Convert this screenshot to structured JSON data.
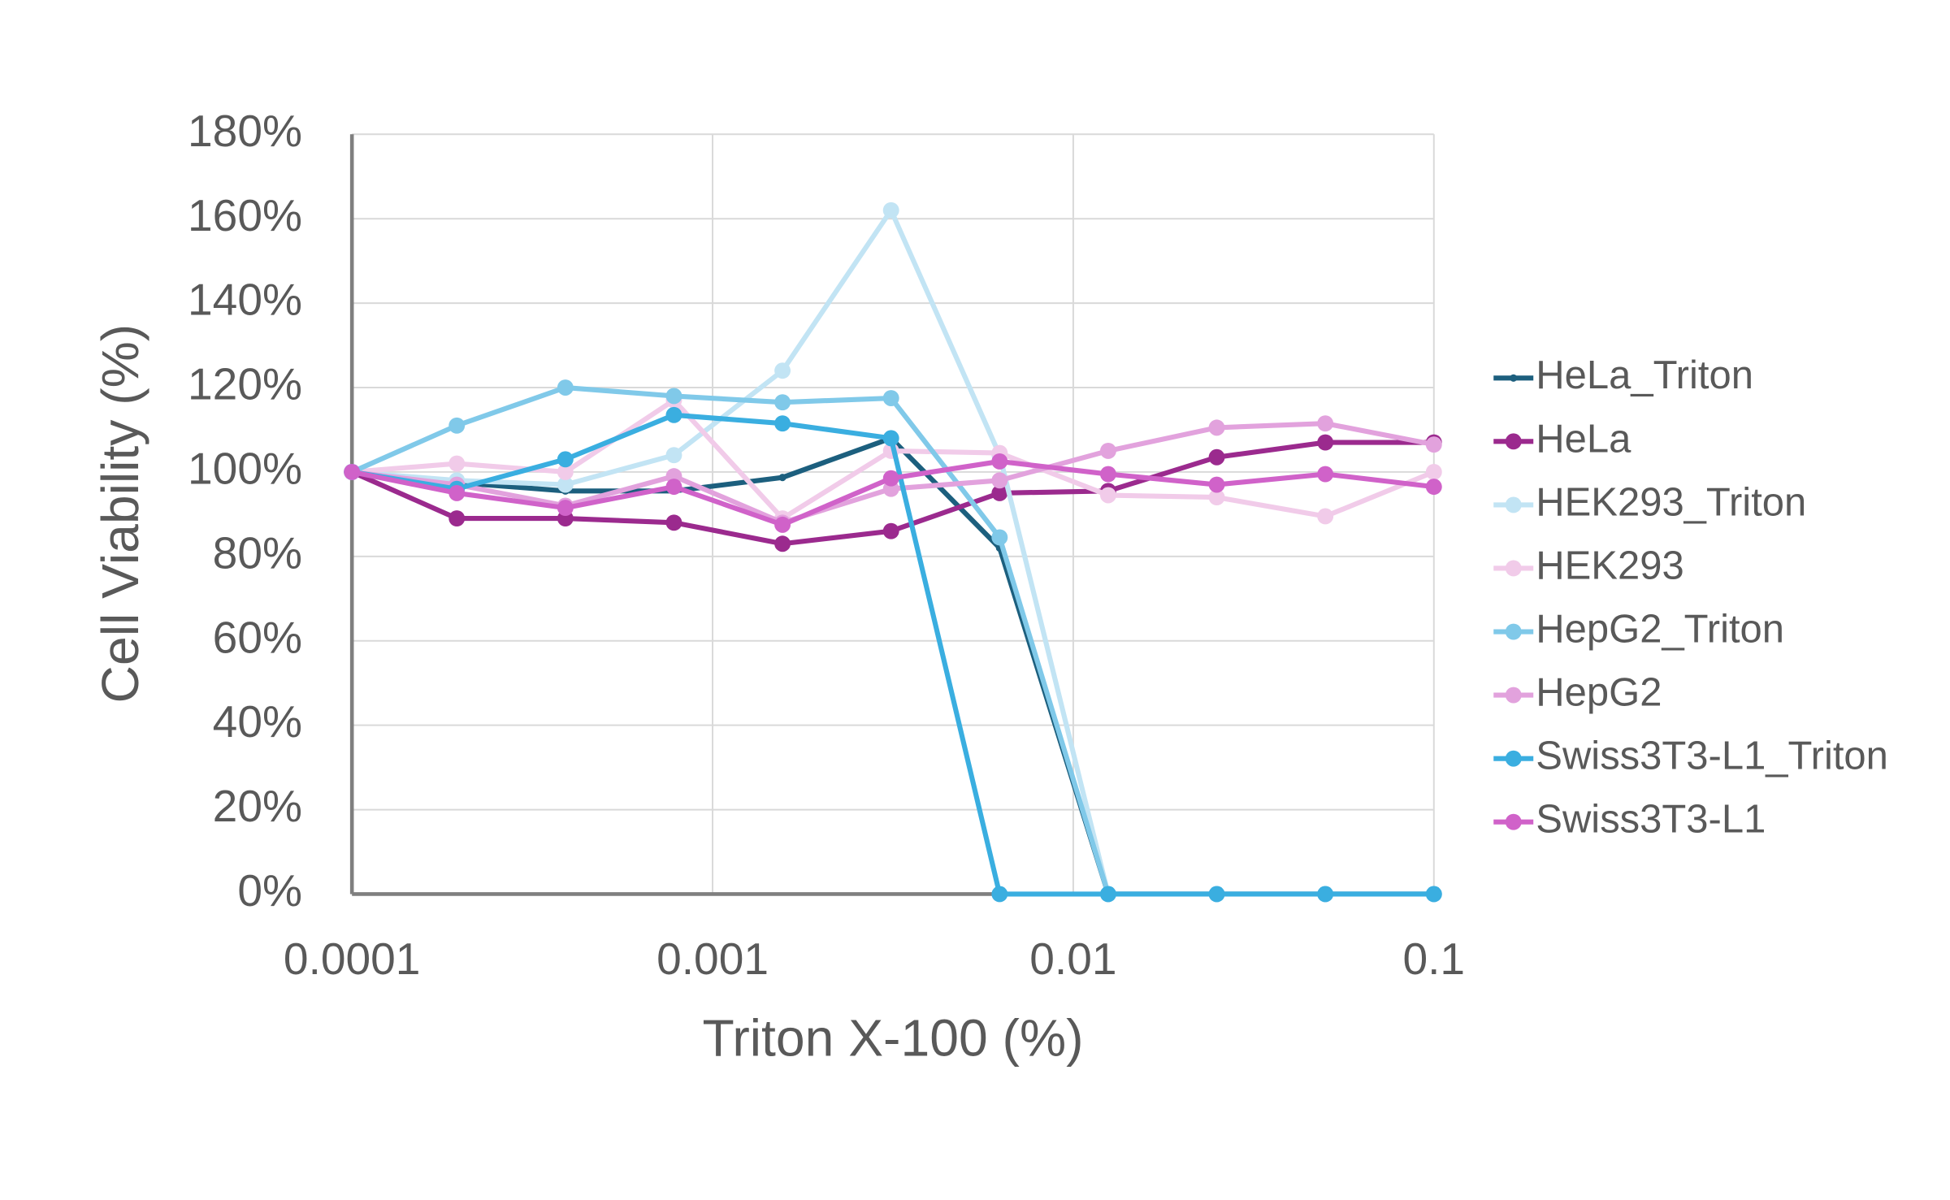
{
  "chart_data": {
    "type": "line",
    "x_label": "Triton X-100 (%)",
    "y_label": "Cell Viability (%)",
    "xscale": "log",
    "xlim": [
      0.0001,
      0.1
    ],
    "xticks": [
      0.0001,
      0.001,
      0.01,
      0.1
    ],
    "ylim": [
      0,
      180
    ],
    "yticks": [
      {
        "value": 0,
        "label": "0%"
      },
      {
        "value": 20,
        "label": "20%"
      },
      {
        "value": 40,
        "label": "40%"
      },
      {
        "value": 60,
        "label": "60%"
      },
      {
        "value": 80,
        "label": "80%"
      },
      {
        "value": 100,
        "label": "100%"
      },
      {
        "value": 120,
        "label": "120%"
      },
      {
        "value": 140,
        "label": "140%"
      },
      {
        "value": 160,
        "label": "160%"
      },
      {
        "value": 180,
        "label": "180%"
      }
    ],
    "grid": true,
    "legend": "right",
    "x": [
      0.0001,
      0.0001953125,
      0.000390625,
      0.00078125,
      0.0015625,
      0.003125,
      0.00625,
      0.0125,
      0.025,
      0.05,
      0.1
    ],
    "series": [
      {
        "name": "HeLa_Triton",
        "color": "#1c5f7e",
        "values": [
          100,
          97.5,
          95.5,
          95.5,
          98.7,
          108,
          82,
          0,
          0,
          0,
          0
        ]
      },
      {
        "name": "HeLa",
        "color": "#9b2a8e",
        "values": [
          100,
          89,
          89,
          88,
          83,
          86,
          95,
          95.5,
          103.5,
          107,
          107
        ]
      },
      {
        "name": "HEK293_Triton",
        "color": "#c2e4f4",
        "values": [
          100,
          98,
          97,
          104,
          124,
          162,
          104,
          0,
          0,
          0,
          0
        ]
      },
      {
        "name": "HEK293",
        "color": "#f1cbe9",
        "values": [
          100,
          102,
          100,
          117,
          89,
          105,
          104.5,
          94.5,
          94,
          89.5,
          100
        ]
      },
      {
        "name": "HepG2_Triton",
        "color": "#80c9e9",
        "values": [
          100,
          111,
          120,
          118,
          116.5,
          117.5,
          84.5,
          0,
          0,
          0,
          0
        ]
      },
      {
        "name": "HepG2",
        "color": "#e2a2dd",
        "values": [
          100,
          97,
          92,
          99,
          88,
          96,
          98,
          105,
          110.5,
          111.5,
          106.5
        ]
      },
      {
        "name": "Swiss3T3-L1_Triton",
        "color": "#3aaee0",
        "values": [
          100,
          96,
          103,
          113.5,
          111.5,
          108,
          0,
          0,
          0,
          0,
          0
        ]
      },
      {
        "name": "Swiss3T3-L1",
        "color": "#d062c9",
        "values": [
          100,
          95,
          91.5,
          96.5,
          87.5,
          98.5,
          102.5,
          99.5,
          97,
          99.5,
          96.5
        ]
      }
    ]
  }
}
